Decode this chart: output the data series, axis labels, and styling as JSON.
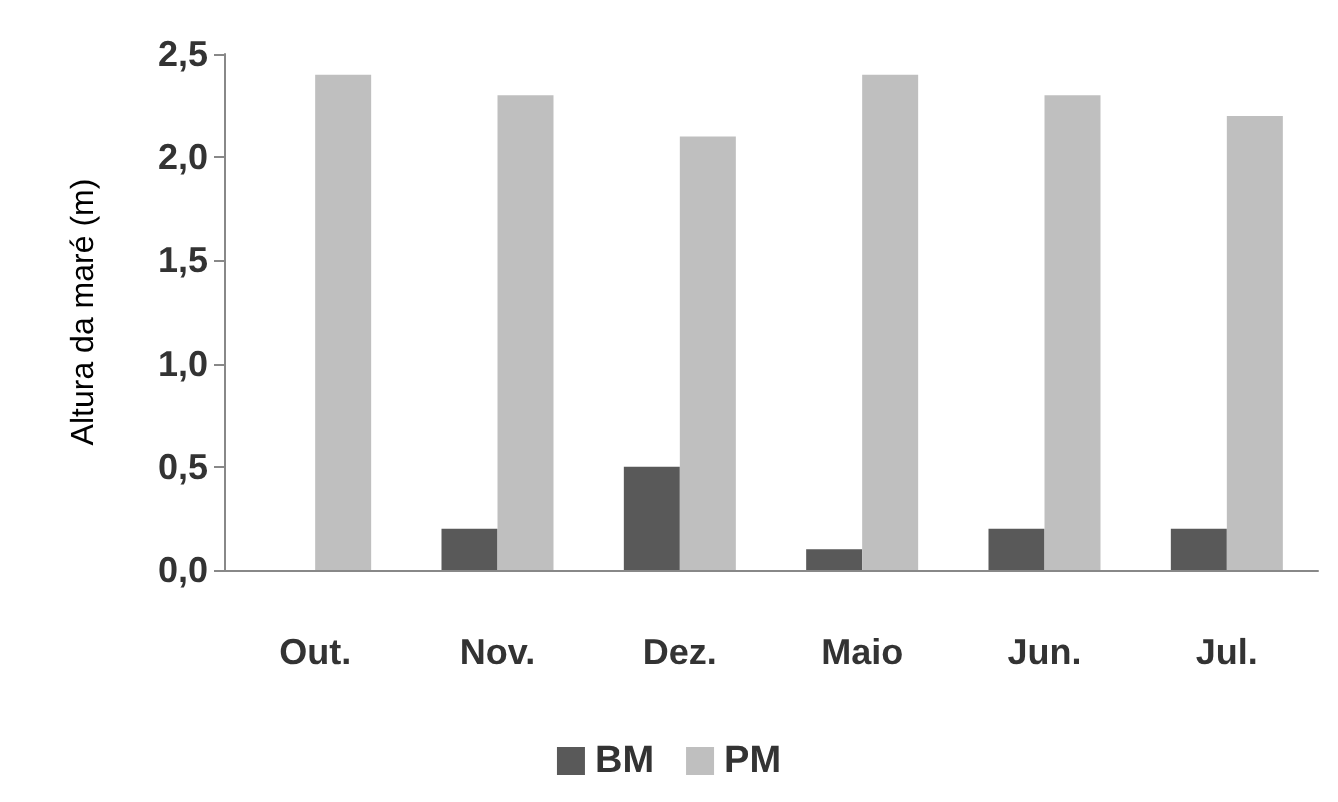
{
  "chart_data": {
    "type": "bar",
    "ylabel": "Altura da maré (m)",
    "categories": [
      "Out.",
      "Nov.",
      "Dez.",
      "Maio",
      "Jun.",
      "Jul."
    ],
    "series": [
      {
        "name": "BM",
        "color": "#595959",
        "values": [
          0,
          0.2,
          0.5,
          0.1,
          0.2,
          0.2
        ]
      },
      {
        "name": "PM",
        "color": "#bfbfbf",
        "values": [
          2.4,
          2.3,
          2.1,
          2.4,
          2.3,
          2.2
        ]
      }
    ],
    "ylim": [
      0,
      2.5
    ],
    "yticks": [
      {
        "value": 0,
        "label": "0,0"
      },
      {
        "value": 0.5,
        "label": "0,5"
      },
      {
        "value": 1,
        "label": "1,0"
      },
      {
        "value": 1.5,
        "label": "1,5"
      },
      {
        "value": 2,
        "label": "2,0"
      },
      {
        "value": 2.5,
        "label": "2,5"
      }
    ],
    "grid": false,
    "legend": "bottom"
  }
}
